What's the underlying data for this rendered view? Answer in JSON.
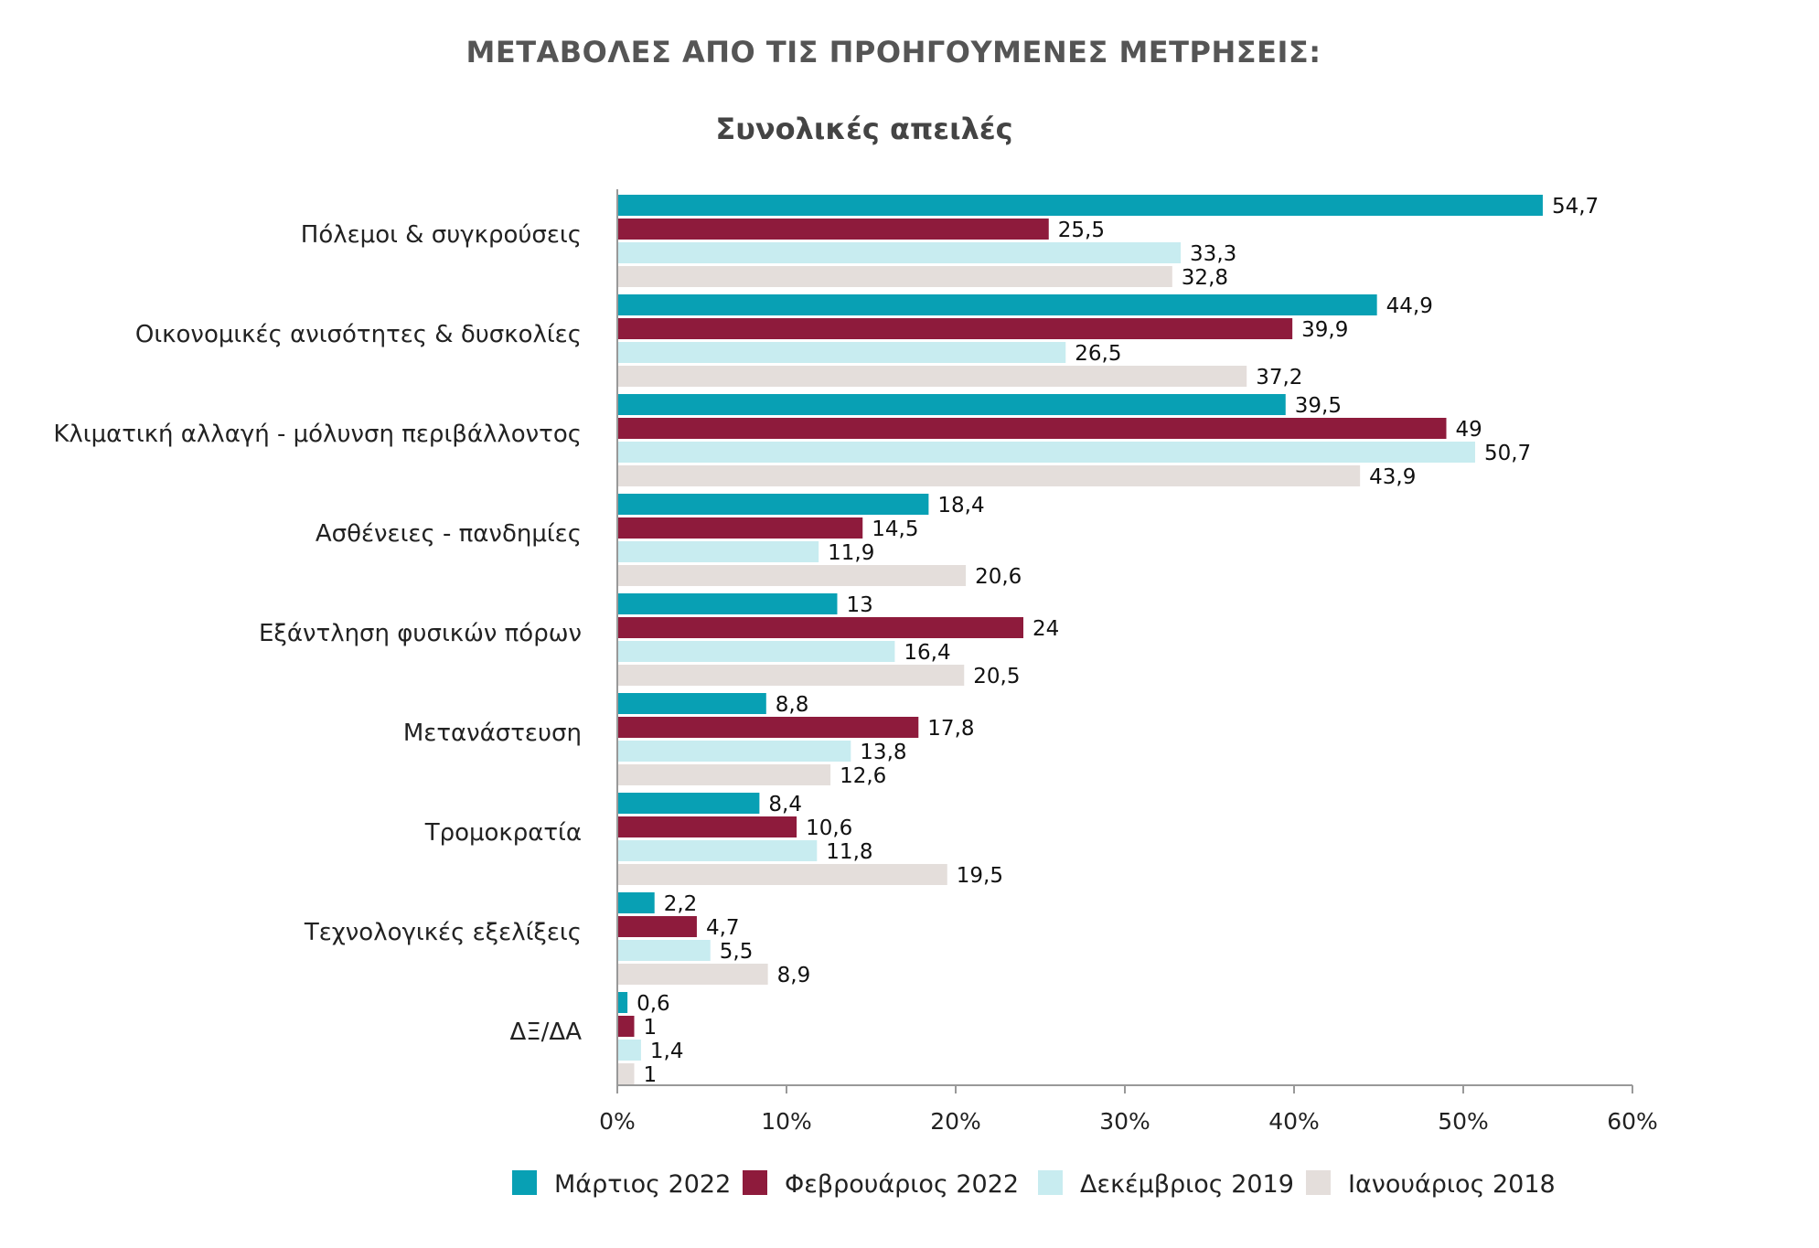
{
  "chart_data": {
    "type": "bar",
    "orientation": "horizontal",
    "title": "ΜΕΤΑΒΟΛΕΣ ΑΠΟ ΤΙΣ ΠΡΟΗΓΟΥΜΕΝΕΣ ΜΕΤΡΗΣΕΙΣ:",
    "subtitle": "Συνολικές απειλές",
    "xlabel": "",
    "ylabel": "",
    "xlim": [
      0,
      60
    ],
    "x_ticks": [
      "0%",
      "10%",
      "20%",
      "30%",
      "40%",
      "50%",
      "60%"
    ],
    "x_tick_values": [
      0,
      10,
      20,
      30,
      40,
      50,
      60
    ],
    "grid": false,
    "legend_position": "bottom",
    "categories": [
      "Πόλεμοι & συγκρούσεις",
      "Οικονομικές ανισότητες & δυσκολίες",
      "Κλιματική αλλαγή - μόλυνση περιβάλλοντος",
      "Ασθένειες - πανδημίες",
      "Εξάντληση φυσικών πόρων",
      "Μετανάστευση",
      "Τρομοκρατία",
      "Τεχνολογικές εξελίξεις",
      "ΔΞ/ΔΑ"
    ],
    "series": [
      {
        "name": "Μάρτιος 2022",
        "color": "#08a0b4",
        "values": [
          54.7,
          44.9,
          39.5,
          18.4,
          13,
          8.8,
          8.4,
          2.2,
          0.6
        ],
        "labels": [
          "54,7",
          "44,9",
          "39,5",
          "18,4",
          "13",
          "8,8",
          "8,4",
          "2,2",
          "0,6"
        ]
      },
      {
        "name": "Φεβρουάριος 2022",
        "color": "#8e1b3c",
        "values": [
          25.5,
          39.9,
          49,
          14.5,
          24,
          17.8,
          10.6,
          4.7,
          1
        ],
        "labels": [
          "25,5",
          "39,9",
          "49",
          "14,5",
          "24",
          "17,8",
          "10,6",
          "4,7",
          "1"
        ]
      },
      {
        "name": "Δεκέμβριος 2019",
        "color": "#c8ecf0",
        "values": [
          33.3,
          26.5,
          50.7,
          11.9,
          16.4,
          13.8,
          11.8,
          5.5,
          1.4
        ],
        "labels": [
          "33,3",
          "26,5",
          "50,7",
          "11,9",
          "16,4",
          "13,8",
          "11,8",
          "5,5",
          "1,4"
        ]
      },
      {
        "name": "Ιανουάριος 2018",
        "color": "#e4dedb",
        "values": [
          32.8,
          37.2,
          43.9,
          20.6,
          20.5,
          12.6,
          19.5,
          8.9,
          1
        ],
        "labels": [
          "32,8",
          "37,2",
          "43,9",
          "20,6",
          "20,5",
          "12,6",
          "19,5",
          "8,9",
          "1"
        ]
      }
    ]
  }
}
